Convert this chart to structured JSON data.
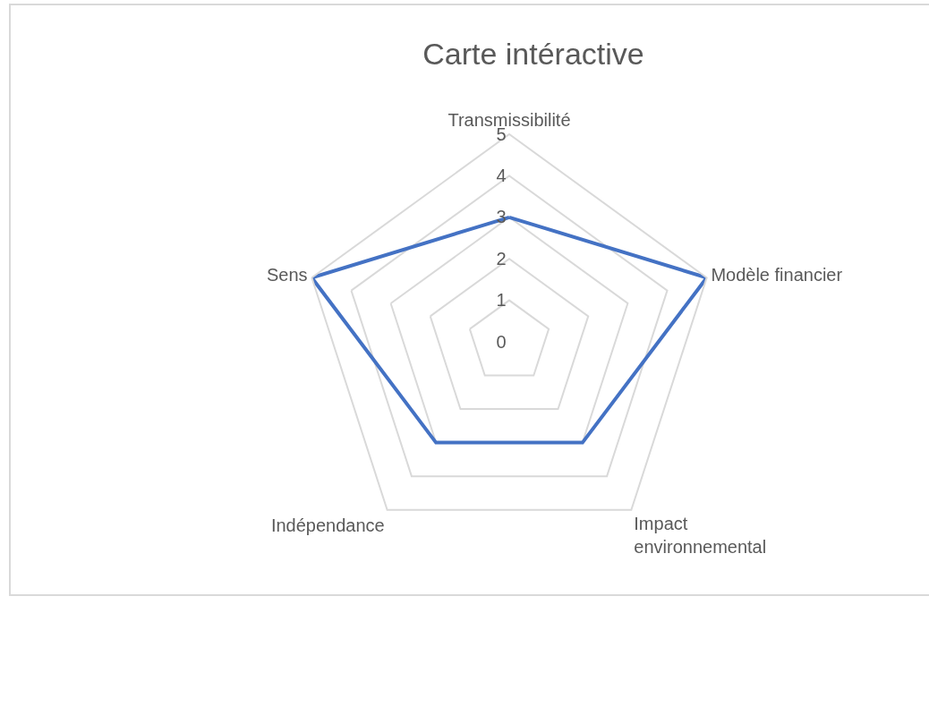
{
  "chart_data": {
    "type": "radar",
    "title": "Carte intéractive",
    "categories": [
      "Transmissibilité",
      "Modèle financier",
      "Impact environnemental",
      "Indépendance",
      "Sens"
    ],
    "series": [
      {
        "color": "#4472c4",
        "values": [
          3,
          5,
          3,
          3,
          5
        ]
      }
    ],
    "ylim": [
      0,
      5
    ],
    "yticks": [
      0,
      1,
      2,
      3,
      4,
      5
    ],
    "grid": true,
    "marker": "none",
    "line_style": "solid"
  }
}
